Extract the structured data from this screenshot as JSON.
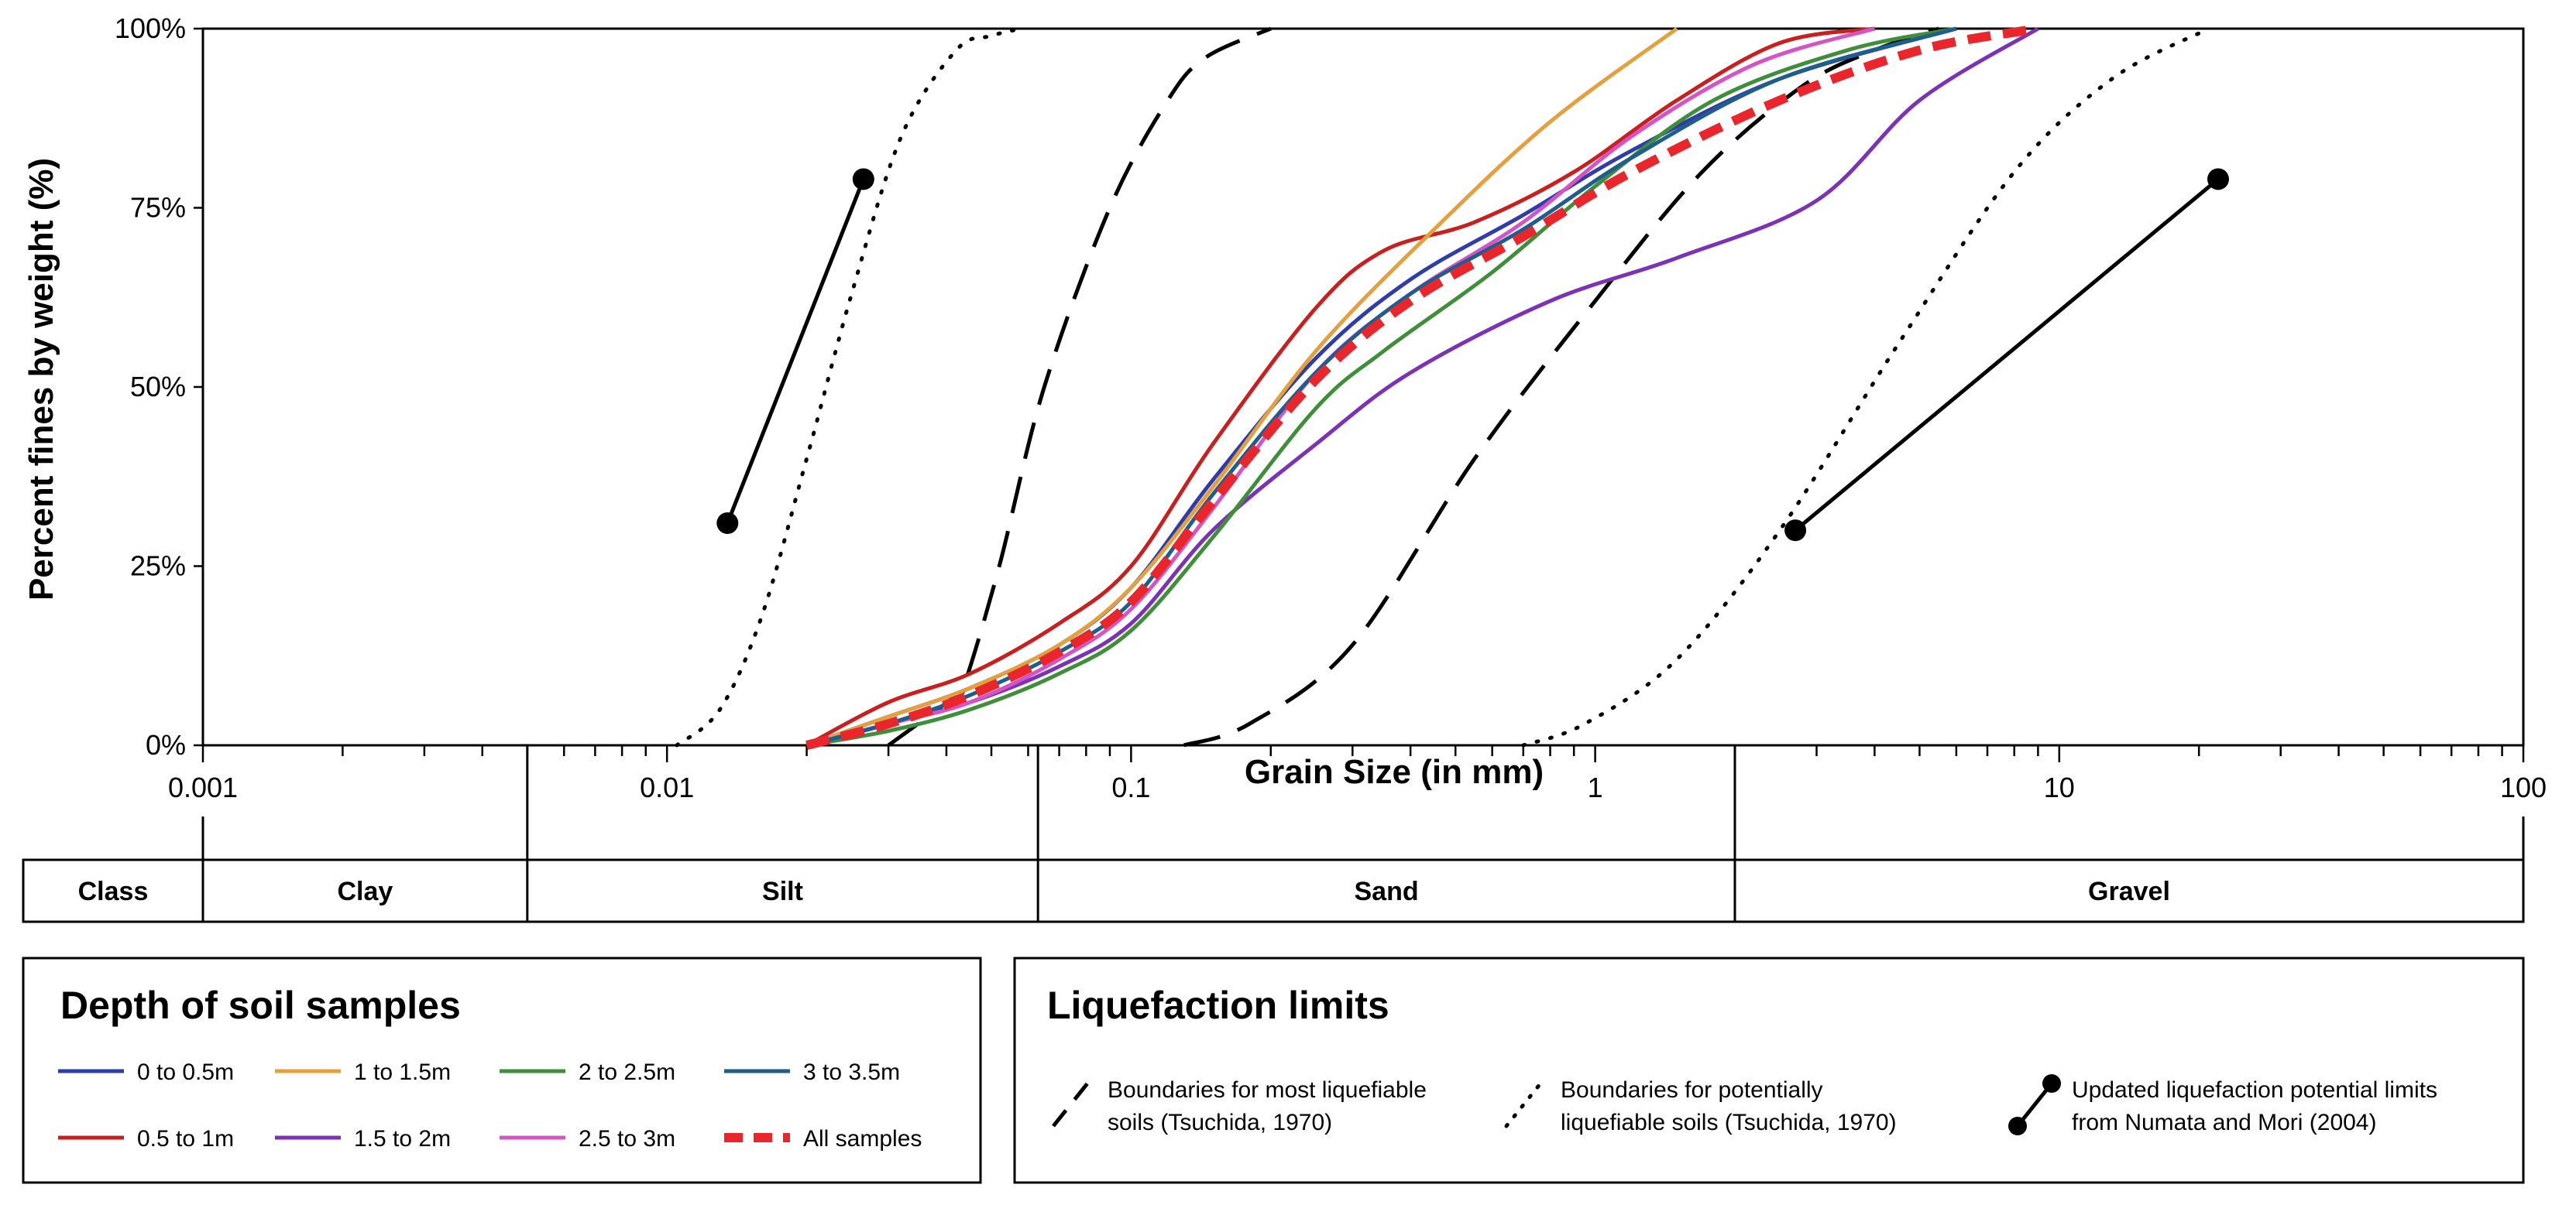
{
  "chart_data": {
    "type": "line",
    "xscale": "log",
    "xlabel": "Grain Size (in mm)",
    "ylabel": "Percent fines by weight  (%)",
    "xlim": [
      0.001,
      100
    ],
    "ylim": [
      0,
      100
    ],
    "x_tick_labels": [
      {
        "value": 0.001,
        "label": "0.001"
      },
      {
        "value": 0.01,
        "label": "0.01"
      },
      {
        "value": 0.1,
        "label": "0.1"
      },
      {
        "value": 1,
        "label": "1"
      },
      {
        "value": 10,
        "label": "10"
      },
      {
        "value": 100,
        "label": "100"
      }
    ],
    "y_tick_labels": [
      {
        "value": 0,
        "label": "0%"
      },
      {
        "value": 25,
        "label": "25%"
      },
      {
        "value": 50,
        "label": "50%"
      },
      {
        "value": 75,
        "label": "75%"
      },
      {
        "value": 100,
        "label": "100%"
      }
    ],
    "soil_classes": {
      "header": "Class",
      "bands": [
        {
          "name": "Clay",
          "from": 0.001,
          "to": 0.005
        },
        {
          "name": "Silt",
          "from": 0.005,
          "to": 0.063
        },
        {
          "name": "Sand",
          "from": 0.063,
          "to": 2
        },
        {
          "name": "Gravel",
          "from": 2,
          "to": 100
        }
      ]
    },
    "series": [
      {
        "name": "0 to 0.5m",
        "color": "#2e3da8",
        "style": "solid",
        "x": [
          0.02,
          0.03,
          0.045,
          0.07,
          0.1,
          0.15,
          0.25,
          0.4,
          0.7,
          1.2,
          2.5,
          6
        ],
        "y": [
          0,
          4,
          8,
          14,
          22,
          37,
          54,
          65,
          74,
          83,
          93,
          100
        ]
      },
      {
        "name": "0.5 to 1m",
        "color": "#c8201f",
        "style": "solid",
        "x": [
          0.02,
          0.03,
          0.045,
          0.07,
          0.1,
          0.15,
          0.25,
          0.35,
          0.55,
          0.9,
          1.5,
          2.5,
          4
        ],
        "y": [
          0,
          6,
          10,
          17,
          25,
          42,
          61,
          69,
          73,
          80,
          90,
          98,
          100
        ]
      },
      {
        "name": "1 to 1.5m",
        "color": "#e3a03c",
        "style": "solid",
        "x": [
          0.02,
          0.03,
          0.045,
          0.07,
          0.1,
          0.15,
          0.25,
          0.45,
          0.8,
          1.5
        ],
        "y": [
          0,
          4,
          8,
          14,
          22,
          36,
          55,
          72,
          87,
          100
        ]
      },
      {
        "name": "1.5 to 2m",
        "color": "#7c32b4",
        "style": "solid",
        "x": [
          0.02,
          0.03,
          0.045,
          0.07,
          0.1,
          0.15,
          0.25,
          0.4,
          0.8,
          1.5,
          3,
          5,
          9
        ],
        "y": [
          0,
          3,
          6,
          11,
          17,
          30,
          42,
          52,
          62,
          68,
          76,
          90,
          100
        ]
      },
      {
        "name": "2 to 2.5m",
        "color": "#3f8f3a",
        "style": "solid",
        "x": [
          0.02,
          0.03,
          0.045,
          0.07,
          0.1,
          0.15,
          0.25,
          0.35,
          0.6,
          1.0,
          1.8,
          3.5,
          6
        ],
        "y": [
          0,
          2,
          5,
          10,
          16,
          29,
          47,
          55,
          66,
          78,
          90,
          97,
          100
        ]
      },
      {
        "name": "2.5 to 3m",
        "color": "#d454c6",
        "style": "solid",
        "x": [
          0.02,
          0.03,
          0.045,
          0.07,
          0.1,
          0.15,
          0.25,
          0.4,
          0.7,
          1.2,
          2.2,
          4
        ],
        "y": [
          0,
          3,
          6,
          12,
          19,
          33,
          52,
          63,
          73,
          85,
          95,
          100
        ]
      },
      {
        "name": "3 to 3.5m",
        "color": "#1f5e8c",
        "style": "solid",
        "x": [
          0.02,
          0.03,
          0.045,
          0.07,
          0.1,
          0.15,
          0.25,
          0.4,
          0.7,
          1.2,
          2.5,
          6
        ],
        "y": [
          0,
          3,
          7,
          13,
          20,
          35,
          52,
          63,
          72,
          82,
          93,
          100
        ]
      },
      {
        "name": "All samples",
        "color": "#e8262c",
        "style": "dashed-thick",
        "x": [
          0.02,
          0.03,
          0.045,
          0.07,
          0.1,
          0.15,
          0.25,
          0.4,
          0.7,
          1.2,
          2.5,
          5,
          9
        ],
        "y": [
          0,
          3,
          7,
          13,
          20,
          34,
          51,
          62,
          71,
          80,
          90,
          97,
          100
        ]
      }
    ],
    "limits": [
      {
        "name": "Boundaries for most liquefiable soils (Tsuchida, 1970) - fine",
        "style": "long-dash",
        "x": [
          0.03,
          0.042,
          0.044,
          0.052,
          0.065,
          0.09,
          0.12,
          0.145,
          0.2
        ],
        "y": [
          0,
          7,
          9,
          25,
          50,
          75,
          90,
          96,
          100
        ]
      },
      {
        "name": "Boundaries for most liquefiable soils (Tsuchida, 1970) - coarse",
        "style": "long-dash",
        "x": [
          0.13,
          0.18,
          0.3,
          0.55,
          1.0,
          1.7,
          2.8,
          4.0,
          5.5
        ],
        "y": [
          0,
          3,
          14,
          40,
          62,
          80,
          92,
          97,
          100
        ]
      },
      {
        "name": "Boundaries for potentially liquefiable soils (Tsuchida, 1970) - fine",
        "style": "dotted",
        "x": [
          0.0105,
          0.013,
          0.016,
          0.02,
          0.025,
          0.032,
          0.042,
          0.05,
          0.058
        ],
        "y": [
          0,
          5,
          18,
          40,
          63,
          85,
          97,
          99,
          100
        ]
      },
      {
        "name": "Boundaries for potentially liquefiable soils (Tsuchida, 1970) - coarse",
        "style": "dotted",
        "x": [
          0.7,
          0.95,
          1.5,
          2.5,
          4.5,
          8,
          13,
          21
        ],
        "y": [
          0,
          3,
          12,
          30,
          56,
          80,
          93,
          100
        ]
      },
      {
        "name": "Updated liquefaction potential limits from Numata and Mori (2004) - fine",
        "style": "solid-dots",
        "x": [
          0.0135,
          0.0265
        ],
        "y": [
          31,
          79
        ]
      },
      {
        "name": "Updated liquefaction potential limits from Numata and Mori (2004) - coarse",
        "style": "solid-dots",
        "x": [
          2.7,
          22
        ],
        "y": [
          30,
          79
        ]
      }
    ],
    "legends": [
      {
        "title": "Depth of soil samples",
        "entries": [
          {
            "label": "0 to 0.5m",
            "color": "#2e3da8",
            "style": "solid"
          },
          {
            "label": "1 to 1.5m",
            "color": "#e3a03c",
            "style": "solid"
          },
          {
            "label": "2 to 2.5m",
            "color": "#3f8f3a",
            "style": "solid"
          },
          {
            "label": "3 to 3.5m",
            "color": "#1f5e8c",
            "style": "solid"
          },
          {
            "label": "0.5 to 1m",
            "color": "#c8201f",
            "style": "solid"
          },
          {
            "label": "1.5 to 2m",
            "color": "#7c32b4",
            "style": "solid"
          },
          {
            "label": "2.5 to 3m",
            "color": "#d454c6",
            "style": "solid"
          },
          {
            "label": "All samples",
            "color": "#e8262c",
            "style": "dashed-thick"
          }
        ]
      },
      {
        "title": "Liquefaction  limits",
        "entries": [
          {
            "lines": [
              "Boundaries for most liquefiable",
              "soils (Tsuchida, 1970)"
            ],
            "style": "long-dash"
          },
          {
            "lines": [
              "Boundaries for potentially",
              "liquefiable soils (Tsuchida, 1970)"
            ],
            "style": "dotted"
          },
          {
            "lines": [
              "Updated liquefaction potential limits",
              "from Numata and Mori (2004)"
            ],
            "style": "solid-dots"
          }
        ]
      }
    ]
  }
}
